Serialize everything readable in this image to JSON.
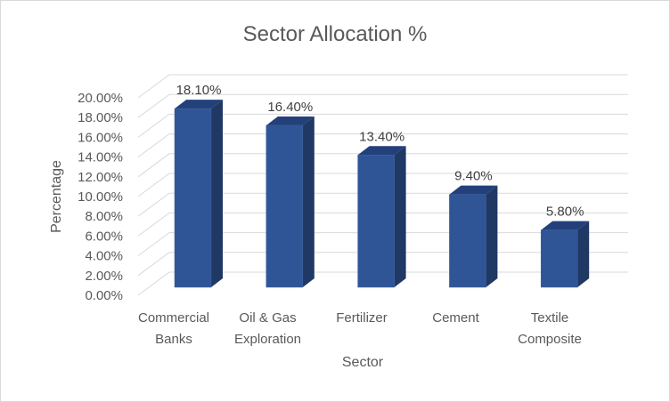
{
  "chart_data": {
    "type": "bar",
    "style": "3d-column",
    "title": "Sector Allocation %",
    "xlabel": "Sector",
    "ylabel": "Percentage",
    "categories": [
      [
        "Commercial",
        "Banks"
      ],
      [
        "Oil & Gas",
        "Exploration"
      ],
      [
        "Fertilizer"
      ],
      [
        "Cement"
      ],
      [
        "Textile",
        "Composite"
      ]
    ],
    "values": [
      18.1,
      16.4,
      13.4,
      9.4,
      5.8
    ],
    "data_labels": [
      "18.10%",
      "16.40%",
      "13.40%",
      "9.40%",
      "5.80%"
    ],
    "ylim": [
      0,
      20
    ],
    "yticks": [
      "0.00%",
      "2.00%",
      "4.00%",
      "6.00%",
      "8.00%",
      "10.00%",
      "12.00%",
      "14.00%",
      "16.00%",
      "18.00%",
      "20.00%"
    ],
    "grid": true,
    "legend": "none",
    "colors": {
      "front": "#2F5597",
      "side": "#1F3864",
      "top": "#23407A"
    }
  }
}
